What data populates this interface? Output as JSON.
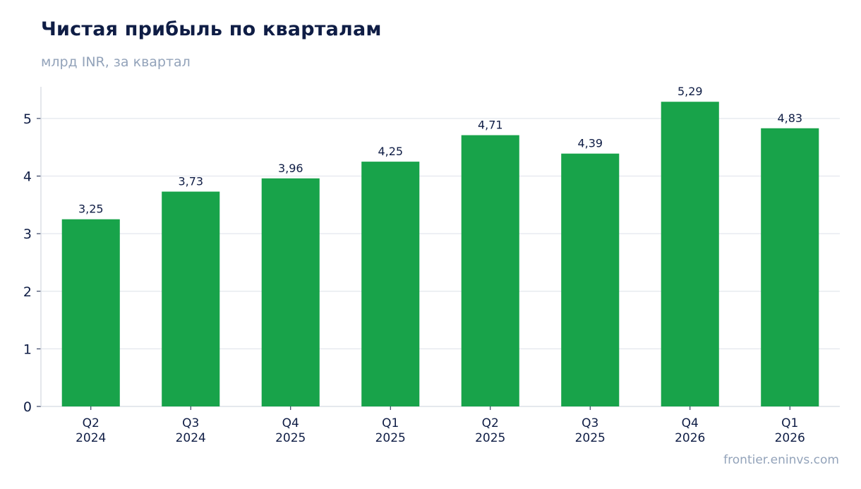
{
  "colors": {
    "bar": "#18a34a",
    "grid": "#e3e7ed",
    "axis": "#d5dae2",
    "text": "#0f1d45",
    "muted": "#93a3ba"
  },
  "chart_data": {
    "type": "bar",
    "title": "Чистая прибыль по кварталам",
    "subtitle": "млрд INR, за квартал",
    "categories": [
      [
        "Q2",
        "2024"
      ],
      [
        "Q3",
        "2024"
      ],
      [
        "Q4",
        "2025"
      ],
      [
        "Q1",
        "2025"
      ],
      [
        "Q2",
        "2025"
      ],
      [
        "Q3",
        "2025"
      ],
      [
        "Q4",
        "2026"
      ],
      [
        "Q1",
        "2026"
      ]
    ],
    "values": [
      3.25,
      3.73,
      3.96,
      4.25,
      4.71,
      4.39,
      5.29,
      4.83
    ],
    "value_labels": [
      "3,25",
      "3,73",
      "3,96",
      "4,25",
      "4,71",
      "4,39",
      "5,29",
      "4,83"
    ],
    "yticks": [
      0,
      1,
      2,
      3,
      4,
      5
    ],
    "ylim": [
      0,
      5.55
    ],
    "grid": true
  },
  "footer": {
    "source": "frontier.eninvs.com"
  }
}
